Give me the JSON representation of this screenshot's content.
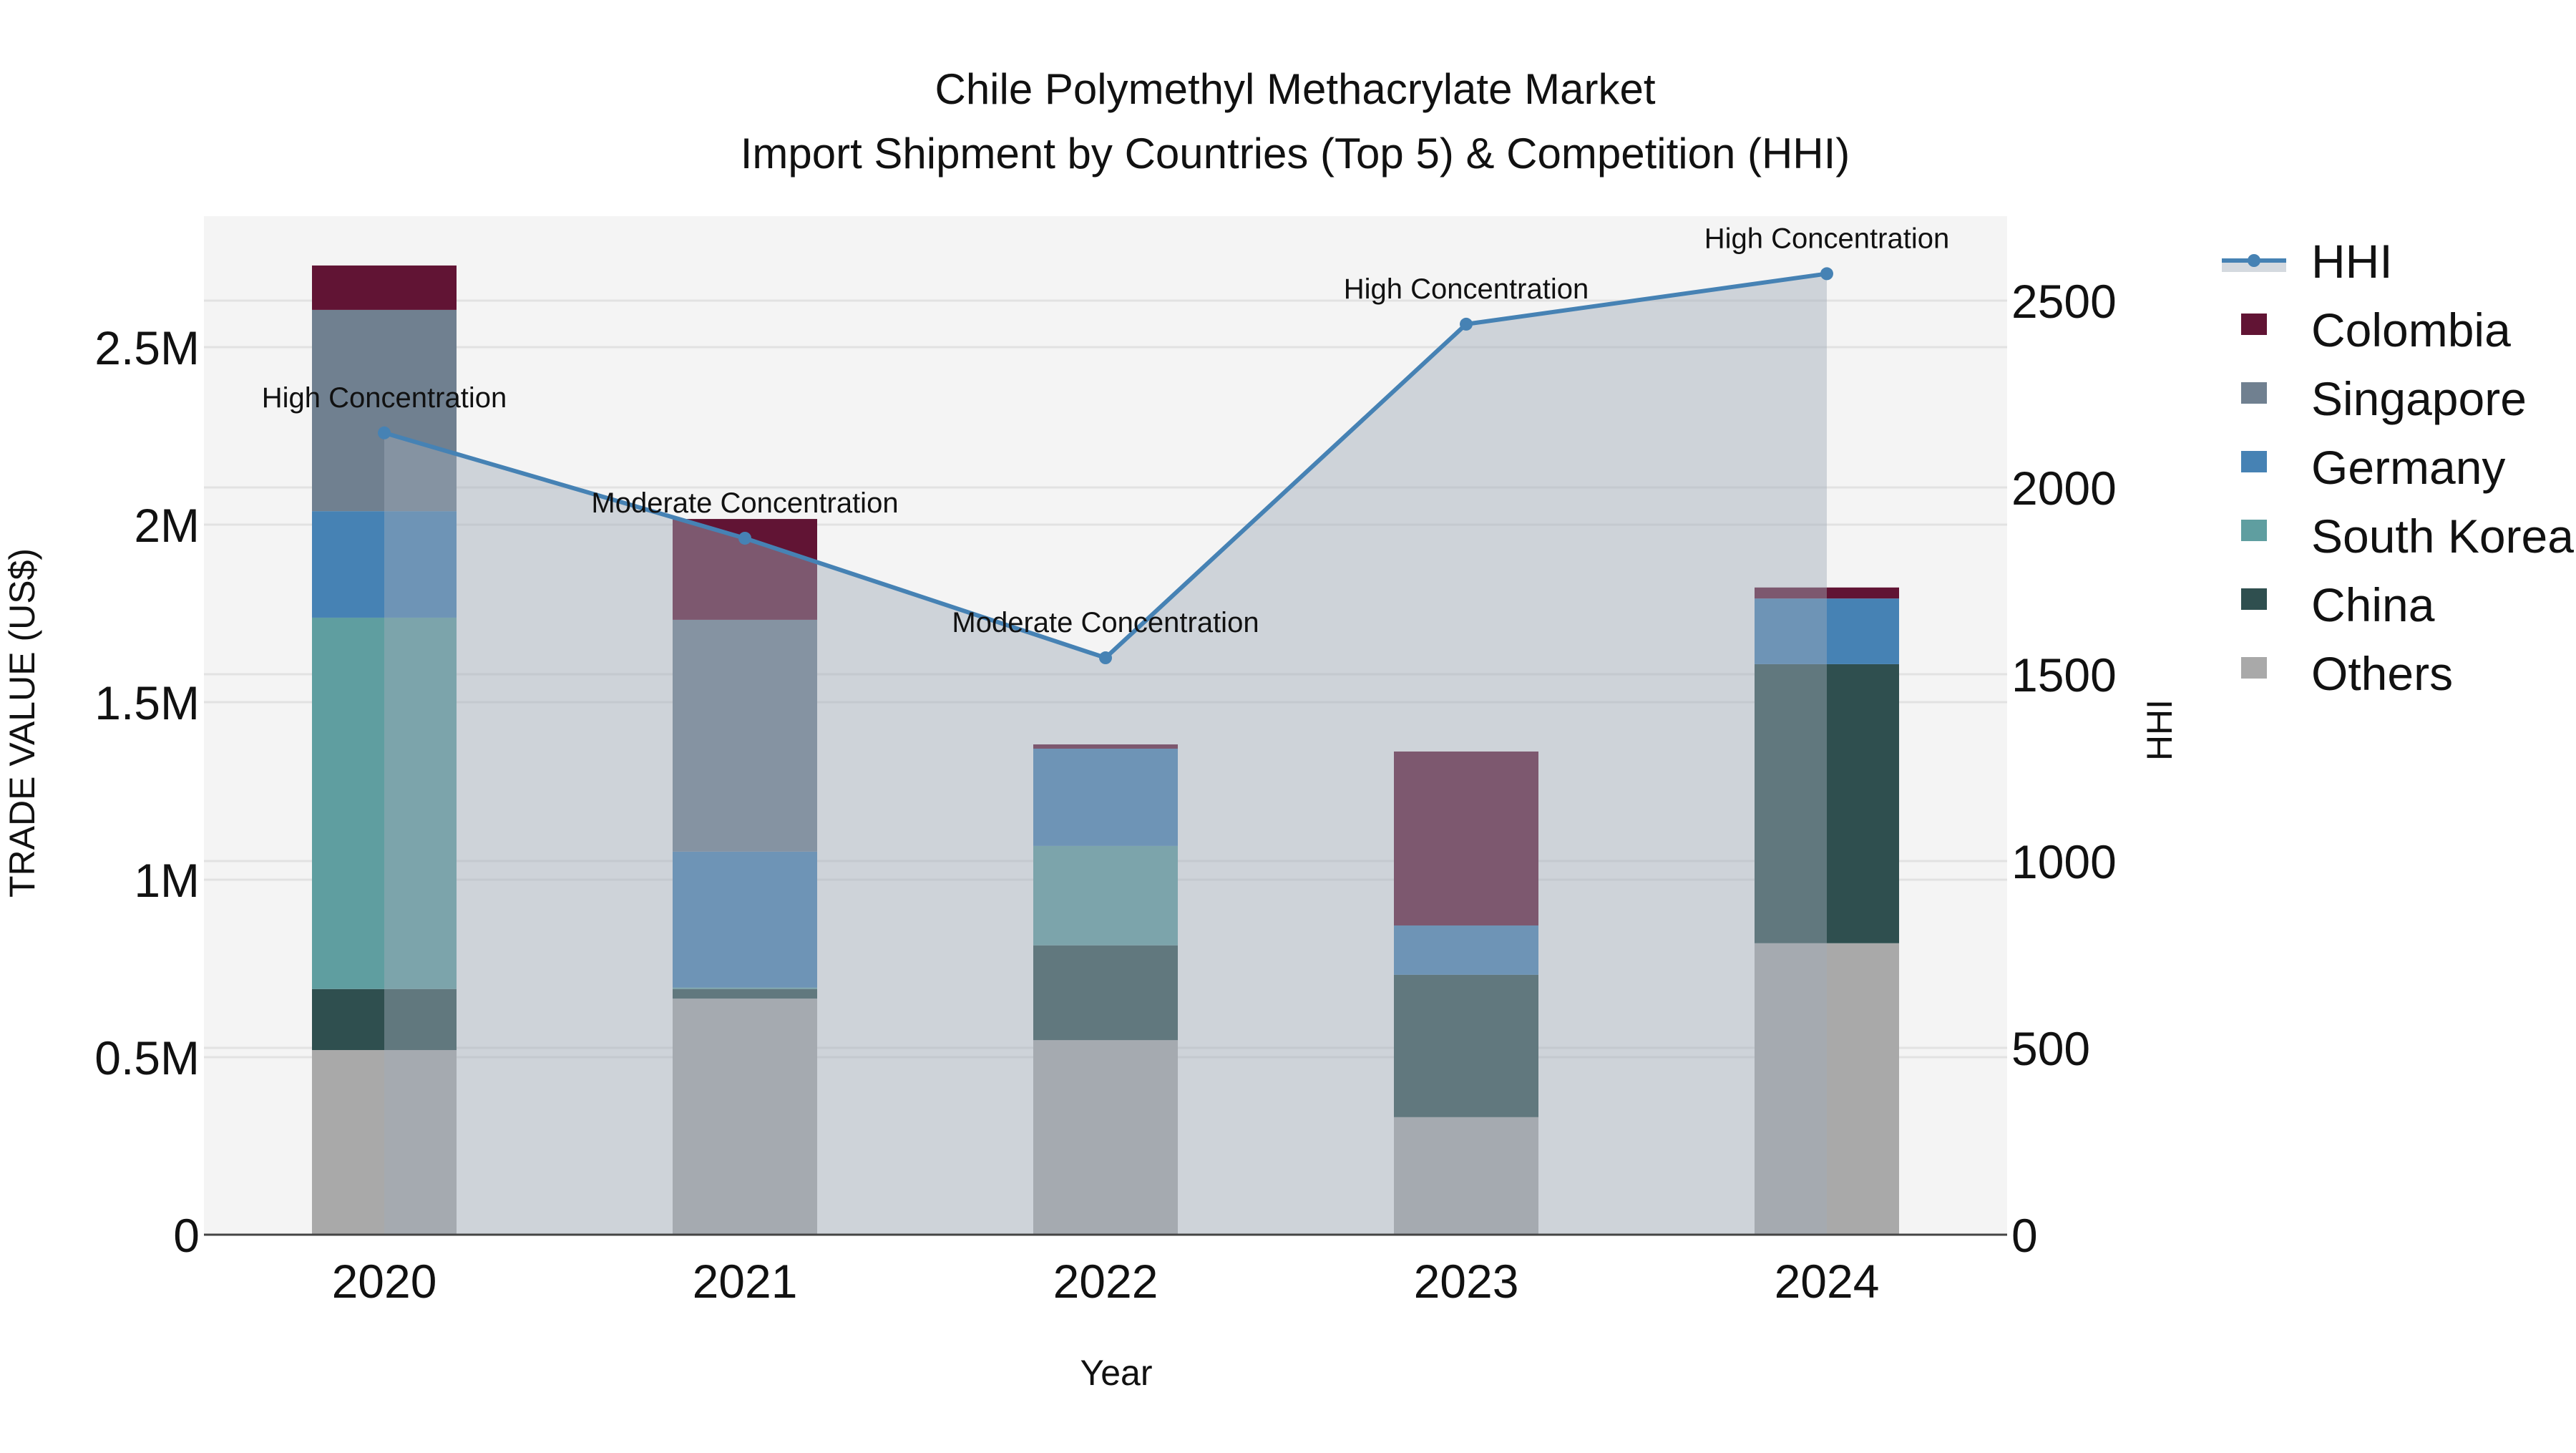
{
  "title": {
    "line1": "Chile Polymethyl Methacrylate Market",
    "line2": "Import Shipment by Countries (Top 5) & Competition (HHI)"
  },
  "axes": {
    "x_title": "Year",
    "y_left_title": "TRADE VALUE (US$)",
    "y_right_title": "HHI",
    "y_left_ticks": [
      "0",
      "0.5M",
      "1M",
      "1.5M",
      "2M",
      "2.5M"
    ],
    "y_right_ticks": [
      "0",
      "500",
      "1000",
      "1500",
      "2000",
      "2500"
    ]
  },
  "legend": [
    {
      "name": "HHI",
      "type": "line",
      "color": "#4682b4"
    },
    {
      "name": "Colombia",
      "type": "bar",
      "color": "#611434"
    },
    {
      "name": "Singapore",
      "type": "bar",
      "color": "#708090"
    },
    {
      "name": "Germany",
      "type": "bar",
      "color": "#4682b4"
    },
    {
      "name": "South Korea",
      "type": "bar",
      "color": "#5f9ea0"
    },
    {
      "name": "China",
      "type": "bar",
      "color": "#2f4f4f"
    },
    {
      "name": "Others",
      "type": "bar",
      "color": "#a9a9a9"
    }
  ],
  "colors": {
    "plot_bg": "#f4f4f4",
    "grid": "#e2e2e2",
    "hhi_line": "#4682b4",
    "hhi_fill": "rgba(160,170,185,0.45)",
    "axis_line": "#444444"
  },
  "chart_data": {
    "type": "bar",
    "title": "Chile Polymethyl Methacrylate Market — Import Shipment by Countries (Top 5) & Competition (HHI)",
    "xlabel": "Year",
    "ylabel": "TRADE VALUE (US$)",
    "y2label": "HHI",
    "categories": [
      "2020",
      "2021",
      "2022",
      "2023",
      "2024"
    ],
    "ylim": [
      0,
      2870000
    ],
    "y2lim": [
      0,
      2730
    ],
    "barmode": "stack",
    "legend_position": "right",
    "series": [
      {
        "name": "Others",
        "color": "#a9a9a9",
        "values": [
          520000,
          665000,
          548000,
          331000,
          821000
        ]
      },
      {
        "name": "China",
        "color": "#2f4f4f",
        "values": [
          172000,
          27000,
          267000,
          401000,
          786000
        ]
      },
      {
        "name": "South Korea",
        "color": "#5f9ea0",
        "values": [
          1046000,
          4000,
          280000,
          0,
          0
        ]
      },
      {
        "name": "Germany",
        "color": "#4682b4",
        "values": [
          300000,
          383000,
          274000,
          139000,
          185000
        ]
      },
      {
        "name": "Singapore",
        "color": "#708090",
        "values": [
          567000,
          653000,
          0,
          0,
          0
        ]
      },
      {
        "name": "Colombia",
        "color": "#611434",
        "values": [
          125000,
          284000,
          12000,
          490000,
          31000
        ]
      }
    ],
    "line_series": {
      "name": "HHI",
      "axis": "right",
      "color": "#4682b4",
      "values": [
        2146,
        1864,
        1544,
        2437,
        2572
      ],
      "annotations": [
        "High Concentration",
        "Moderate Concentration",
        "Moderate Concentration",
        "High Concentration",
        "High Concentration"
      ]
    }
  }
}
